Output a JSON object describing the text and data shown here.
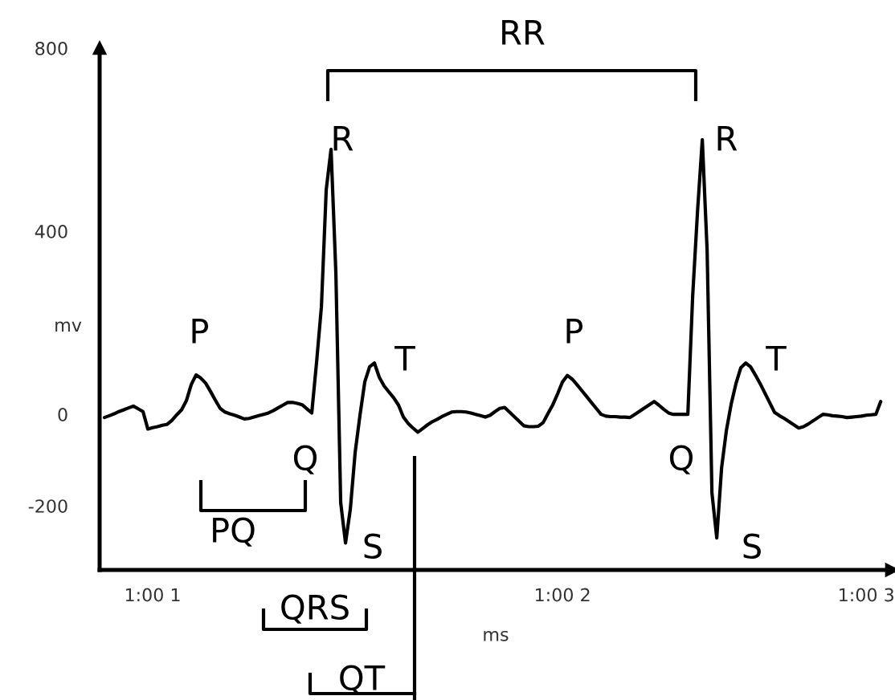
{
  "chart_data": {
    "type": "line",
    "xlabel": "ms",
    "ylabel": "mv",
    "categories": [
      null,
      null,
      null,
      null,
      null,
      null,
      null,
      null,
      null,
      null,
      "1:00 1",
      null,
      null,
      null,
      null,
      null,
      null,
      null,
      null,
      null,
      null,
      null,
      null,
      null,
      null,
      null,
      null,
      null,
      null,
      null,
      null,
      null,
      null,
      null,
      null,
      null,
      null,
      null,
      null,
      null,
      null,
      null,
      null,
      null,
      null,
      null,
      null,
      null,
      null,
      null,
      null,
      null,
      null,
      null,
      null,
      null,
      null,
      null,
      null,
      null,
      null,
      null,
      null,
      null,
      null,
      null,
      null,
      null,
      null,
      null,
      null,
      null,
      null,
      null,
      null,
      null,
      null,
      null,
      null,
      null,
      null,
      null,
      null,
      null,
      null,
      null,
      null,
      null,
      null,
      null,
      null,
      null,
      null,
      null,
      null,
      "1:00 2",
      null,
      null,
      null,
      null,
      null,
      null,
      null,
      null,
      null,
      null,
      null,
      null,
      null,
      null,
      null,
      null,
      null,
      null,
      null,
      null,
      null,
      null,
      null,
      null,
      null,
      null,
      null,
      null,
      null,
      null,
      null,
      null,
      null,
      null,
      null,
      null,
      null,
      null,
      null,
      null,
      null,
      null,
      null,
      null,
      null,
      null,
      null,
      null,
      null,
      null,
      null,
      null,
      null,
      null,
      null,
      null,
      null,
      null,
      null,
      null,
      null,
      null,
      "1:00 3",
      null,
      null,
      null
    ],
    "series": [
      {
        "color": "#000000",
        "values": [
          -7,
          -3,
          1,
          6,
          10,
          14,
          18,
          12,
          6,
          -32,
          -29,
          -27,
          -24,
          -22,
          -13,
          -1,
          10,
          30,
          65,
          86,
          79,
          68,
          50,
          31,
          13,
          5,
          1,
          -2,
          -6,
          -10,
          -9,
          -6,
          -3,
          0,
          3,
          8,
          14,
          20,
          26,
          26,
          24,
          21,
          12,
          3,
          114,
          235,
          491,
          579,
          309,
          -193,
          -281,
          -207,
          -83,
          -2,
          71,
          104,
          112,
          81,
          62,
          49,
          36,
          20,
          -6,
          -20,
          -30,
          -39,
          -31,
          -23,
          -16,
          -11,
          -5,
          0,
          5,
          6,
          6,
          5,
          3,
          0,
          -3,
          -6,
          -2,
          6,
          13,
          15,
          5,
          -5,
          -15,
          -25,
          -27,
          -27,
          -26,
          -18,
          2,
          21,
          45,
          71,
          85,
          77,
          65,
          52,
          39,
          26,
          13,
          0,
          -4,
          -5,
          -5,
          -6,
          -6,
          -7,
          0,
          7,
          14,
          21,
          28,
          20,
          11,
          3,
          0,
          0,
          0,
          0,
          258,
          442,
          600,
          358,
          -172,
          -270,
          -117,
          -35,
          23,
          68,
          102,
          112,
          104,
          86,
          67,
          46,
          25,
          4,
          -3,
          -9,
          -16,
          -23,
          -30,
          -27,
          -21,
          -14,
          -7,
          0,
          -1,
          -3,
          -4,
          -5,
          -7,
          -6,
          -5,
          -4,
          -2,
          -1,
          0,
          28
        ]
      }
    ],
    "ylim": [
      -340,
      800
    ],
    "yticks": [
      800,
      400,
      0,
      -200
    ],
    "grid": false,
    "legend": false,
    "marker": "none",
    "line_style": "solid",
    "annotations": [
      "P",
      "Q",
      "R",
      "S",
      "T",
      "P",
      "R",
      "Q",
      "S",
      "T",
      "RR",
      "PQ",
      "QRS",
      "QT"
    ]
  }
}
